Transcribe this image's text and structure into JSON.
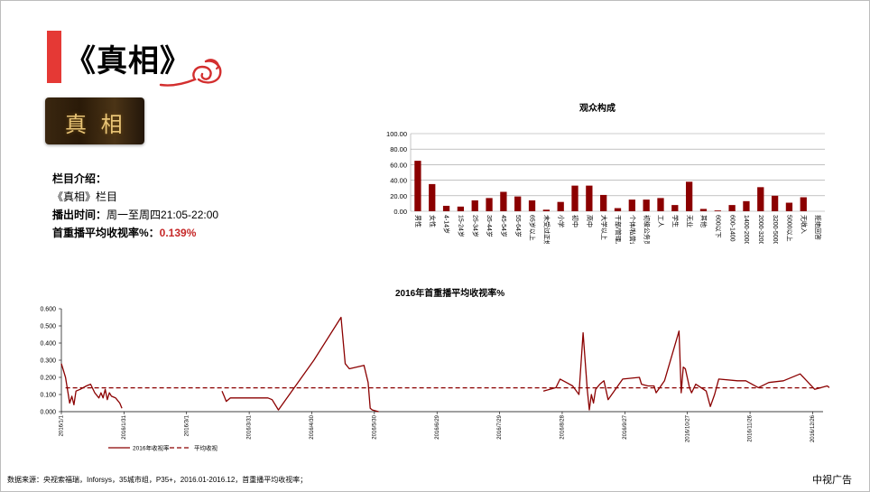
{
  "slide": {
    "title": "《真相》",
    "thumbnail_text": "真 相",
    "intro_label": "栏目介绍：",
    "program_name": "《真相》栏目",
    "broadcast_label": "播出时间：",
    "broadcast_value": "周一至周四21:05-22:00",
    "rating_label": "首重播平均收视率%：",
    "rating_value": "0.139%",
    "source": "数据来源：央视索福瑞，Inforsys，35城市组，P35+，2016.01-2016.12，首重播平均收视率；",
    "brand": "中视广告",
    "accent_color": "#e53935",
    "bar_color": "#8b0000"
  },
  "chart_data": [
    {
      "type": "bar",
      "title": "观众构成",
      "ylim": [
        0,
        100
      ],
      "yticks": [
        "0.00",
        "20.00",
        "40.00",
        "60.00",
        "80.00",
        "100.00"
      ],
      "grid": true,
      "categories": [
        "男性",
        "女性",
        "4-14岁",
        "15-24岁",
        "25-34岁",
        "35-44岁",
        "45-54岁",
        "55-64岁",
        "65岁以上",
        "未受过正规教育",
        "小学",
        "初中",
        "高中",
        "大学以上",
        "干部/管理人员",
        "个体/私营企业人员",
        "初级公务员/雇员",
        "工人",
        "学生",
        "无业",
        "其他",
        "600以下",
        "600-1400",
        "1400-2000",
        "2000-3200",
        "3200-5000",
        "5000以上",
        "无收入",
        "拒绝回答"
      ],
      "values": [
        65,
        35,
        7,
        6,
        14,
        17,
        25,
        19,
        14,
        2,
        12,
        33,
        33,
        21,
        4,
        15,
        15,
        17,
        8,
        38,
        3,
        1,
        8,
        13,
        31,
        20,
        11,
        18,
        0
      ]
    },
    {
      "type": "line",
      "title": "2016年首重播平均收视率%",
      "ylim": [
        0,
        0.6
      ],
      "yticks": [
        "0.000",
        "0.100",
        "0.200",
        "0.300",
        "0.400",
        "0.500",
        "0.600"
      ],
      "xticks": [
        "2016/1/1",
        "2016/1/31",
        "2016/3/1",
        "2016/3/31",
        "2016/4/30",
        "2016/5/30",
        "2016/6/29",
        "2016/7/29",
        "2016/8/28",
        "2016/9/27",
        "2016/10/27",
        "2016/11/26",
        "2016/12/26"
      ],
      "legend_position": "bottom-left",
      "series": [
        {
          "name": "2016年收视率",
          "segments": [
            [
              [
                1,
                0.28
              ],
              [
                3,
                0.2
              ],
              [
                5,
                0.05
              ],
              [
                6,
                0.09
              ],
              [
                7,
                0.04
              ],
              [
                8,
                0.12
              ],
              [
                10,
                0.13
              ],
              [
                13,
                0.15
              ],
              [
                15,
                0.16
              ],
              [
                17,
                0.11
              ],
              [
                19,
                0.08
              ],
              [
                20,
                0.11
              ],
              [
                21,
                0.08
              ],
              [
                22,
                0.13
              ],
              [
                23,
                0.07
              ],
              [
                24,
                0.11
              ],
              [
                25,
                0.09
              ],
              [
                27,
                0.08
              ],
              [
                29,
                0.05
              ],
              [
                30,
                0.02
              ]
            ],
            [
              [
                78,
                0.12
              ],
              [
                79,
                0.09
              ],
              [
                80,
                0.06
              ],
              [
                82,
                0.08
              ],
              [
                90,
                0.08
              ],
              [
                100,
                0.08
              ],
              [
                102,
                0.07
              ],
              [
                105,
                0.01
              ],
              [
                122,
                0.3
              ],
              [
                135,
                0.55
              ],
              [
                137,
                0.28
              ],
              [
                139,
                0.25
              ],
              [
                146,
                0.27
              ],
              [
                148,
                0.17
              ],
              [
                149,
                0.02
              ],
              [
                150,
                0.01
              ],
              [
                153,
                0.0
              ]
            ],
            [
              [
                232,
                0.12
              ],
              [
                238,
                0.14
              ],
              [
                240,
                0.19
              ],
              [
                243,
                0.17
              ],
              [
                246,
                0.15
              ],
              [
                249,
                0.1
              ],
              [
                251,
                0.46
              ],
              [
                253,
                0.13
              ],
              [
                254,
                0.01
              ],
              [
                255,
                0.1
              ],
              [
                256,
                0.05
              ],
              [
                257,
                0.13
              ],
              [
                259,
                0.16
              ],
              [
                261,
                0.18
              ],
              [
                263,
                0.07
              ],
              [
                270,
                0.19
              ],
              [
                278,
                0.2
              ],
              [
                279,
                0.16
              ],
              [
                282,
                0.15
              ],
              [
                285,
                0.15
              ],
              [
                286,
                0.11
              ],
              [
                290,
                0.18
              ],
              [
                297,
                0.47
              ],
              [
                298,
                0.11
              ],
              [
                299,
                0.26
              ],
              [
                300,
                0.25
              ],
              [
                302,
                0.14
              ],
              [
                303,
                0.11
              ],
              [
                305,
                0.16
              ],
              [
                310,
                0.12
              ],
              [
                312,
                0.03
              ],
              [
                314,
                0.1
              ],
              [
                316,
                0.19
              ],
              [
                325,
                0.18
              ],
              [
                329,
                0.18
              ],
              [
                335,
                0.14
              ],
              [
                340,
                0.17
              ],
              [
                347,
                0.18
              ],
              [
                355,
                0.22
              ],
              [
                362,
                0.13
              ],
              [
                368,
                0.15
              ],
              [
                369,
                0.14
              ]
            ]
          ]
        },
        {
          "name": "平均收视",
          "type": "dashed",
          "values": [
            0.139
          ]
        }
      ]
    }
  ]
}
